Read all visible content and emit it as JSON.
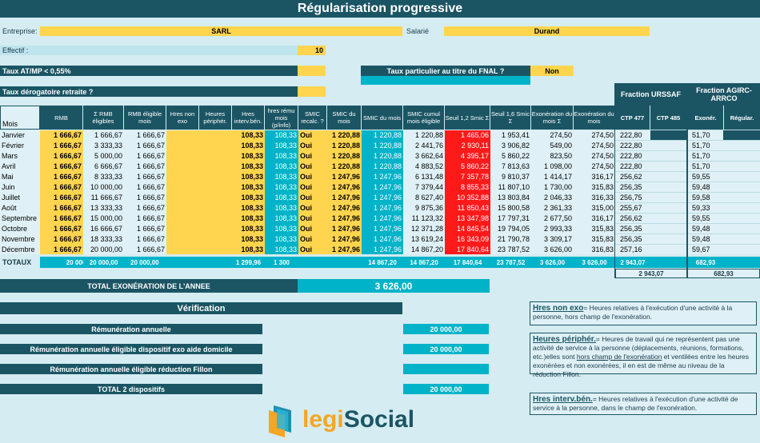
{
  "title": "Régularisation progressive",
  "header": {
    "entreprise_label": "Entreprise:",
    "entreprise_value": "SARL",
    "salarie_label": "Salarié",
    "salarie_value": "Durand",
    "effectif_label": "Effectif :",
    "effectif_value": "10",
    "taux_atmp_label": "Taux AT/MP < 0,55%",
    "taux_fnal_label": "Taux particulier au titre du FNAL ?",
    "taux_fnal_value": "Non",
    "taux_derog_label": "Taux dérogatoire retraite ?"
  },
  "fraction_urssaf": "Fraction URSSAF",
  "fraction_agirc": "Fraction AGIRC-ARRCO",
  "columns": [
    "RMB",
    "Σ RMB éligibles",
    "RMB éligible mois",
    "Hres non exo",
    "Heures périphér.",
    "Hres interv.bén.",
    "hres rému mois (p/info)",
    "SMIC recalc. ?",
    "SMIC du mois",
    "SMIC du mois",
    "SMIC cumul mois éligible",
    "Seuil 1,2 Smic Σ",
    "Seuil 1,6 Smic Σ",
    "Exonération du mois Σ",
    "Exonération du mois",
    "CTP 477",
    "CTP 485",
    "Exonér.",
    "Régular."
  ],
  "mois_label": "Mois",
  "rows": [
    {
      "mois": "Janvier",
      "rmb": "1 666,67",
      "srmb": "1 666,67",
      "rmbm": "1 666,67",
      "hiv": "108,33",
      "hrm": "108,33",
      "recalc": "Oui",
      "smic1": "1 220,88",
      "smic2": "1 220,88",
      "cumul": "1 220,88",
      "s12": "1 465,06",
      "s16": "1 953,41",
      "exs": "274,50",
      "exm": "274,50",
      "ctp477": "222,80",
      "agirc": "51,70"
    },
    {
      "mois": "Février",
      "rmb": "1 666,67",
      "srmb": "3 333,33",
      "rmbm": "1 666,67",
      "hiv": "108,33",
      "hrm": "108,33",
      "recalc": "Oui",
      "smic1": "1 220,88",
      "smic2": "1 220,88",
      "cumul": "2 441,76",
      "s12": "2 930,11",
      "s16": "3 906,82",
      "exs": "549,00",
      "exm": "274,50",
      "ctp477": "222,80",
      "agirc": "51,70"
    },
    {
      "mois": "Mars",
      "rmb": "1 666,67",
      "srmb": "5 000,00",
      "rmbm": "1 666,67",
      "hiv": "108,33",
      "hrm": "108,33",
      "recalc": "Oui",
      "smic1": "1 220,88",
      "smic2": "1 220,88",
      "cumul": "3 662,64",
      "s12": "4 395,17",
      "s16": "5 860,22",
      "exs": "823,50",
      "exm": "274,50",
      "ctp477": "222,80",
      "agirc": "51,70"
    },
    {
      "mois": "Avril",
      "rmb": "1 666,67",
      "srmb": "6 666,67",
      "rmbm": "1 666,67",
      "hiv": "108,33",
      "hrm": "108,33",
      "recalc": "Oui",
      "smic1": "1 220,88",
      "smic2": "1 220,88",
      "cumul": "4 883,52",
      "s12": "5 860,22",
      "s16": "7 813,63",
      "exs": "1 098,00",
      "exm": "274,50",
      "ctp477": "222,80",
      "agirc": "51,70"
    },
    {
      "mois": "Mai",
      "rmb": "1 666,67",
      "srmb": "8 333,33",
      "rmbm": "1 666,67",
      "hiv": "108,33",
      "hrm": "108,33",
      "recalc": "Oui",
      "smic1": "1 247,96",
      "smic2": "1 247,96",
      "cumul": "6 131,48",
      "s12": "7 357,78",
      "s16": "9 810,37",
      "exs": "1 414,17",
      "exm": "316,17",
      "ctp477": "256,62",
      "agirc": "59,55"
    },
    {
      "mois": "Juin",
      "rmb": "1 666,67",
      "srmb": "10 000,00",
      "rmbm": "1 666,67",
      "hiv": "108,33",
      "hrm": "108,33",
      "recalc": "Oui",
      "smic1": "1 247,96",
      "smic2": "1 247,96",
      "cumul": "7 379,44",
      "s12": "8 855,33",
      "s16": "11 807,10",
      "exs": "1 730,00",
      "exm": "315,83",
      "ctp477": "256,35",
      "agirc": "59,48"
    },
    {
      "mois": "Juillet",
      "rmb": "1 666,67",
      "srmb": "11 666,67",
      "rmbm": "1 666,67",
      "hiv": "108,33",
      "hrm": "108,33",
      "recalc": "Oui",
      "smic1": "1 247,96",
      "smic2": "1 247,96",
      "cumul": "8 627,40",
      "s12": "10 352,88",
      "s16": "13 803,84",
      "exs": "2 046,33",
      "exm": "316,33",
      "ctp477": "256,75",
      "agirc": "59,58"
    },
    {
      "mois": "Août",
      "rmb": "1 666,67",
      "srmb": "13 333,33",
      "rmbm": "1 666,67",
      "hiv": "108,33",
      "hrm": "108,33",
      "recalc": "Oui",
      "smic1": "1 247,96",
      "smic2": "1 247,96",
      "cumul": "9 875,36",
      "s12": "11 850,43",
      "s16": "15 800,58",
      "exs": "2 361,33",
      "exm": "315,00",
      "ctp477": "255,67",
      "agirc": "59,33"
    },
    {
      "mois": "Septembre",
      "rmb": "1 666,67",
      "srmb": "15 000,00",
      "rmbm": "1 666,67",
      "hiv": "108,33",
      "hrm": "108,33",
      "recalc": "Oui",
      "smic1": "1 247,96",
      "smic2": "1 247,96",
      "cumul": "11 123,32",
      "s12": "13 347,98",
      "s16": "17 797,31",
      "exs": "2 677,50",
      "exm": "316,17",
      "ctp477": "256,62",
      "agirc": "59,55"
    },
    {
      "mois": "Octobre",
      "rmb": "1 666,67",
      "srmb": "16 666,67",
      "rmbm": "1 666,67",
      "hiv": "108,33",
      "hrm": "108,33",
      "recalc": "Oui",
      "smic1": "1 247,96",
      "smic2": "1 247,96",
      "cumul": "12 371,28",
      "s12": "14 845,54",
      "s16": "19 794,05",
      "exs": "2 993,33",
      "exm": "315,83",
      "ctp477": "256,35",
      "agirc": "59,48"
    },
    {
      "mois": "Novembre",
      "rmb": "1 666,67",
      "srmb": "18 333,33",
      "rmbm": "1 666,67",
      "hiv": "108,33",
      "hrm": "108,33",
      "recalc": "Oui",
      "smic1": "1 247,96",
      "smic2": "1 247,96",
      "cumul": "13 619,24",
      "s12": "16 343,09",
      "s16": "21 790,78",
      "exs": "3 309,17",
      "exm": "315,83",
      "ctp477": "256,35",
      "agirc": "59,48"
    },
    {
      "mois": "Décembre",
      "rmb": "1 666,67",
      "srmb": "20 000,00",
      "rmbm": "1 666,67",
      "hiv": "108,33",
      "hrm": "108,33",
      "recalc": "Oui",
      "smic1": "1 247,96",
      "smic2": "1 247,96",
      "cumul": "14 867,20",
      "s12": "17 840,64",
      "s16": "23 787,52",
      "exs": "3 626,00",
      "exm": "316,83",
      "ctp477": "257,16",
      "agirc": "59,67"
    }
  ],
  "totaux": {
    "label": "TOTAUX",
    "rmb": "20 000,00",
    "srmb": "20 000,00",
    "rmbm": "20 000,00",
    "hiv": "1 299,96",
    "hrm": "1 300",
    "smic2": "14 867,20",
    "cumul": "14 867,20",
    "s12": "17 840,64",
    "s16": "23 787,52",
    "exs": "3 626,00",
    "exm": "3 626,00",
    "ctp477": "2 943,07",
    "agirc": "682,93",
    "ctp_sum": "2 943,07",
    "agirc_sum": "682,93"
  },
  "total_exo": {
    "label": "TOTAL EXONÉRATION DE L'ANNEE",
    "value": "3 626,00"
  },
  "verification": {
    "title": "Vérification",
    "items": [
      {
        "label": "Rémunération annuelle",
        "value": "20 000,00"
      },
      {
        "label": "Rémunération annuelle éligible dispositif exo aide domicile",
        "value": "20 000,00"
      },
      {
        "label": "Rémunération annuelle éligible réduction Fillon",
        "value": ""
      },
      {
        "label": "TOTAL 2 dispositifs",
        "value": "20 000,00"
      }
    ]
  },
  "notes": [
    {
      "term": "Hres non exo",
      "text": "= Heures relatives à l'exécution d'une activité à la personne, hors champ de l'exonération."
    },
    {
      "term": "Heures périphér.",
      "text_a": "= Heures de travail qui ne représentent pas une activité de service à la personne (déplacements, réunions, formations, etc.)elles sont ",
      "link": "hors champ de l'exonération",
      "text_b": " et ventilées entre les heures exonérées et non exonérées, il en est de même au niveau de la réduction Fillon."
    },
    {
      "term": "Hres interv.bén.",
      "text": "= Heures relatives à l'exécution d'une activité de service à la personne, dans le champ de l'exonération."
    }
  ],
  "logo": {
    "text_a": "legi",
    "text_b": "Social"
  },
  "colors": {
    "dark": "#1b5564",
    "turquoise": "#00b3c8",
    "yellow": "#ffd54f",
    "light": "#dff1f6",
    "red": "#ff1a1a"
  }
}
